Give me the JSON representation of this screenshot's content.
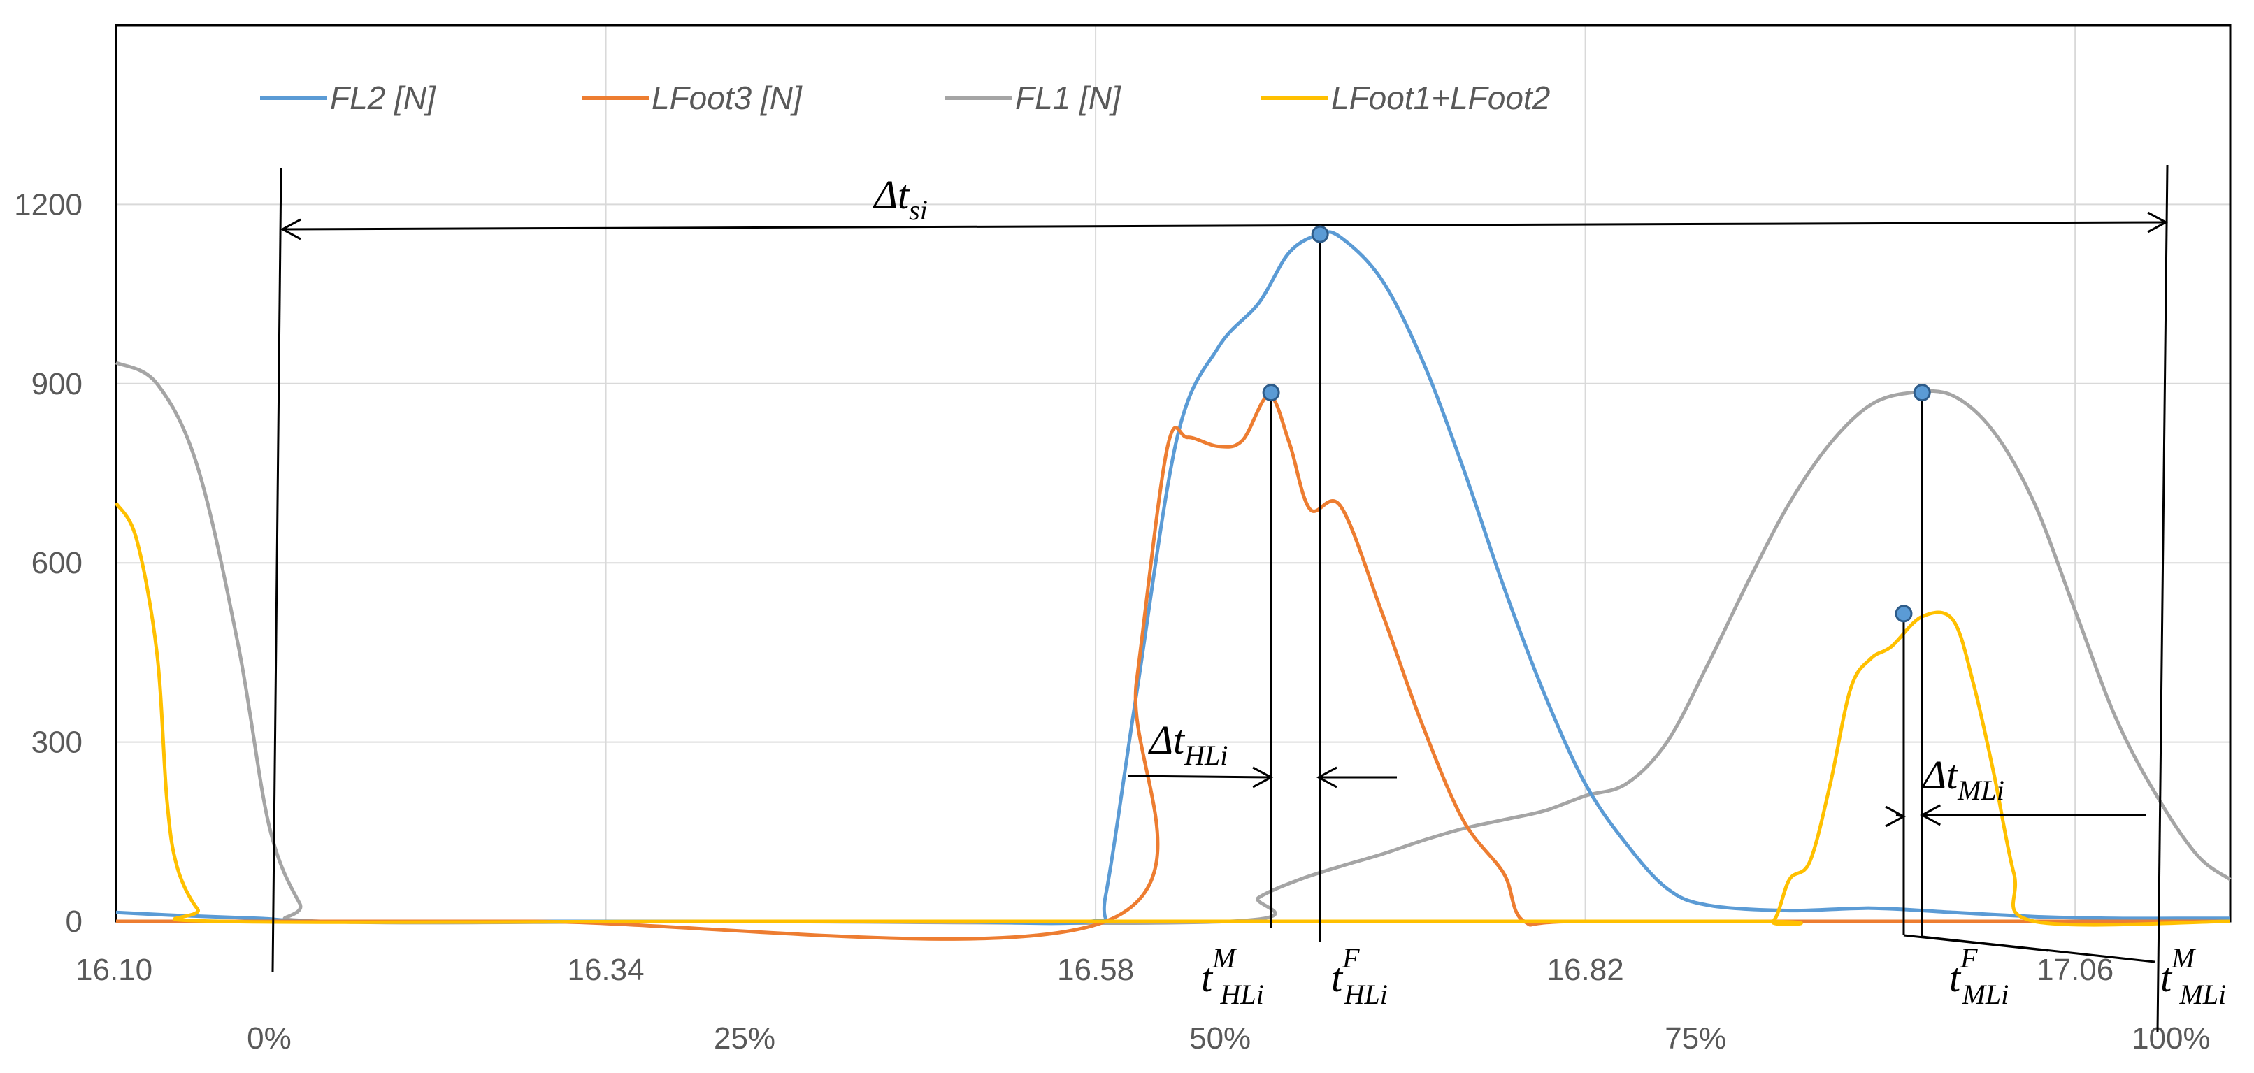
{
  "chart_data": {
    "type": "line",
    "title": "",
    "xlabel": "",
    "ylabel": "",
    "xlim": [
      16.1,
      17.136
    ],
    "ylim": [
      0,
      1200
    ],
    "y_ticks": [
      "0",
      "300",
      "600",
      "900",
      "1200"
    ],
    "x_tick_values": [
      16.1,
      16.34,
      16.58,
      16.82,
      17.06
    ],
    "x_ticks": [
      "16.10",
      "16.34",
      "16.58",
      "16.82",
      "17.06"
    ],
    "percent_axis": {
      "labels": [
        "0%",
        "25%",
        "50%",
        "75%",
        "100%"
      ],
      "x_values": [
        16.175,
        16.408,
        16.641,
        16.874,
        17.107
      ]
    },
    "grid": true,
    "legend": "top",
    "series": [
      {
        "name": "FL2 [N]",
        "color": "#5B9BD5",
        "points": [
          [
            16.1,
            15
          ],
          [
            16.13,
            10
          ],
          [
            16.17,
            5
          ],
          [
            16.2,
            0
          ],
          [
            16.3,
            0
          ],
          [
            16.4,
            0
          ],
          [
            16.5,
            0
          ],
          [
            16.578,
            0
          ],
          [
            16.585,
            45
          ],
          [
            16.6,
            380
          ],
          [
            16.62,
            810
          ],
          [
            16.64,
            960
          ],
          [
            16.66,
            1035
          ],
          [
            16.675,
            1120
          ],
          [
            16.69,
            1150
          ],
          [
            16.7,
            1145
          ],
          [
            16.72,
            1075
          ],
          [
            16.74,
            940
          ],
          [
            16.76,
            760
          ],
          [
            16.78,
            560
          ],
          [
            16.8,
            380
          ],
          [
            16.82,
            230
          ],
          [
            16.84,
            130
          ],
          [
            16.86,
            55
          ],
          [
            16.88,
            27
          ],
          [
            16.92,
            18
          ],
          [
            16.96,
            22
          ],
          [
            17.0,
            15
          ],
          [
            17.04,
            8
          ],
          [
            17.08,
            5
          ],
          [
            17.12,
            5
          ],
          [
            17.136,
            5
          ]
        ]
      },
      {
        "name": "LFoot3 [N]",
        "color": "#ED7D31",
        "points": [
          [
            16.1,
            0
          ],
          [
            16.3,
            0
          ],
          [
            16.585,
            0
          ],
          [
            16.6,
            400
          ],
          [
            16.615,
            790
          ],
          [
            16.625,
            810
          ],
          [
            16.64,
            795
          ],
          [
            16.652,
            805
          ],
          [
            16.665,
            880
          ],
          [
            16.675,
            800
          ],
          [
            16.685,
            690
          ],
          [
            16.7,
            695
          ],
          [
            16.72,
            520
          ],
          [
            16.74,
            330
          ],
          [
            16.76,
            170
          ],
          [
            16.78,
            80
          ],
          [
            16.79,
            0
          ],
          [
            16.82,
            0
          ],
          [
            17.0,
            0
          ],
          [
            17.136,
            0
          ]
        ]
      },
      {
        "name": "FL1 [N]",
        "color": "#A5A5A5",
        "points": [
          [
            16.1,
            935
          ],
          [
            16.12,
            900
          ],
          [
            16.14,
            760
          ],
          [
            16.16,
            460
          ],
          [
            16.175,
            160
          ],
          [
            16.19,
            30
          ],
          [
            16.2,
            0
          ],
          [
            16.4,
            0
          ],
          [
            16.646,
            0
          ],
          [
            16.66,
            40
          ],
          [
            16.68,
            70
          ],
          [
            16.7,
            92
          ],
          [
            16.72,
            112
          ],
          [
            16.74,
            135
          ],
          [
            16.76,
            155
          ],
          [
            16.78,
            170
          ],
          [
            16.8,
            185
          ],
          [
            16.82,
            210
          ],
          [
            16.84,
            230
          ],
          [
            16.86,
            300
          ],
          [
            16.88,
            430
          ],
          [
            16.9,
            570
          ],
          [
            16.92,
            700
          ],
          [
            16.94,
            800
          ],
          [
            16.96,
            865
          ],
          [
            16.98,
            885
          ],
          [
            17.0,
            880
          ],
          [
            17.02,
            820
          ],
          [
            17.04,
            700
          ],
          [
            17.06,
            520
          ],
          [
            17.08,
            340
          ],
          [
            17.1,
            210
          ],
          [
            17.12,
            110
          ],
          [
            17.136,
            70
          ]
        ]
      },
      {
        "name": "LFoot1+LFoot2",
        "color": "#FFC000",
        "points": [
          [
            16.1,
            700
          ],
          [
            16.11,
            640
          ],
          [
            16.12,
            450
          ],
          [
            16.125,
            200
          ],
          [
            16.13,
            90
          ],
          [
            16.14,
            20
          ],
          [
            16.15,
            0
          ],
          [
            16.4,
            0
          ],
          [
            16.6,
            0
          ],
          [
            16.9,
            0
          ],
          [
            16.912,
            0
          ],
          [
            16.92,
            70
          ],
          [
            16.93,
            100
          ],
          [
            16.94,
            230
          ],
          [
            16.95,
            390
          ],
          [
            16.96,
            440
          ],
          [
            16.97,
            460
          ],
          [
            16.985,
            510
          ],
          [
            17.0,
            505
          ],
          [
            17.01,
            400
          ],
          [
            17.02,
            250
          ],
          [
            17.03,
            80
          ],
          [
            17.04,
            0
          ],
          [
            17.136,
            0
          ]
        ]
      }
    ],
    "markers": [
      {
        "x": 16.69,
        "y": 1150
      },
      {
        "x": 16.666,
        "y": 885
      },
      {
        "x": 16.985,
        "y": 885
      },
      {
        "x": 16.976,
        "y": 515
      }
    ],
    "annotations": {
      "delta_ts": {
        "main": "Δt",
        "sub": "si"
      },
      "delta_thl": {
        "main": "Δt",
        "sub": "HLi"
      },
      "delta_tml": {
        "main": "Δt",
        "sub": "MLi"
      },
      "t_hl_m": {
        "main": "t",
        "sub": "HLi",
        "sup": "M"
      },
      "t_hl_f": {
        "main": "t",
        "sub": "HLi",
        "sup": "F"
      },
      "t_ml_f": {
        "main": "t",
        "sub": "MLi",
        "sup": "F"
      },
      "t_ml_m": {
        "main": "t",
        "sub": "MLi",
        "sup": "M"
      }
    }
  }
}
